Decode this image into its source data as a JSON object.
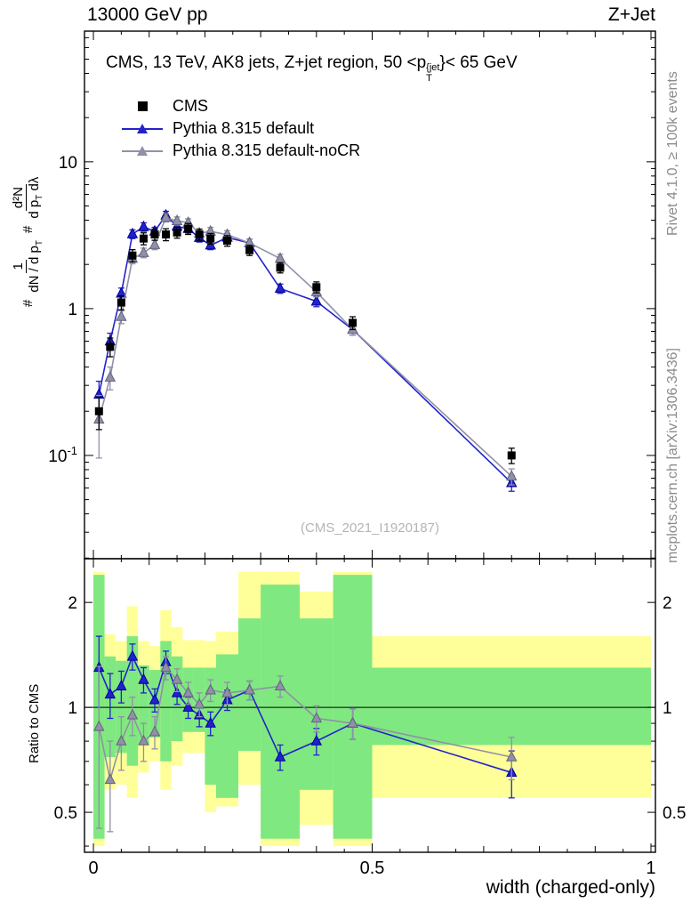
{
  "header": {
    "left": "13000 GeV pp",
    "right": "Z+Jet"
  },
  "panel_title": {
    "pre": "CMS, 13 TeV, AK8 jets, Z+jet region, 50 <p",
    "sup": "{jet",
    "sub": "T",
    "post": "}< 65 GeV"
  },
  "legend": [
    {
      "label": "CMS",
      "marker": "square",
      "color": "#000000"
    },
    {
      "label": "Pythia 8.315 default",
      "marker": "triangle",
      "color": "#2222cc"
    },
    {
      "label": "Pythia 8.315 default-noCR",
      "marker": "triangle",
      "color": "#9090a8"
    }
  ],
  "watermark": "(CMS_2021_I1920187)",
  "side_notes": {
    "top_right": "Rivet 4.1.0, ≥ 100k events",
    "bottom_right": "mcplots.cern.ch [arXiv:1306.3436]"
  },
  "ylabel_main": {
    "prefix": "#",
    "frac1_num": "1",
    "frac1_den_pre": "dN / d p",
    "frac1_den_sub": "T",
    "prefix2": "#",
    "frac2_num": "d²N",
    "frac2_den_pre": "d p",
    "frac2_den_sub": "T",
    "frac2_den_post": " dλ"
  },
  "ylabel_ratio": "Ratio to CMS",
  "xlabel": "width (charged-only)",
  "chart_data": {
    "type": "line",
    "title": "CMS, 13 TeV, AK8 jets, Z+jet region, 50 <p^{jet}_T< 65 GeV",
    "xlabel": "width (charged-only)",
    "ylabel": "# 1/(dN/dp_T) d²N/(dp_T dλ)",
    "ratio_ylabel": "Ratio to CMS",
    "legend_position": "top-left",
    "grid": false,
    "x_range": [
      -0.016,
      1.008
    ],
    "x_ticks": [
      {
        "v": 0,
        "label": "0"
      },
      {
        "v": 0.5,
        "label": "0.5"
      },
      {
        "v": 1,
        "label": "1"
      }
    ],
    "main": {
      "y_scale": "log",
      "y_range": [
        0.0198,
        77.6
      ],
      "y_ticks": [
        {
          "v": 10,
          "label": "10"
        },
        {
          "v": 1,
          "label": "1"
        },
        {
          "v": 0.1,
          "label": "10",
          "sup": "-1"
        }
      ]
    },
    "ratio": {
      "y_scale": "log",
      "y_range": [
        0.384,
        2.67
      ],
      "y_ticks": [
        {
          "v": 2,
          "label": "2"
        },
        {
          "v": 1,
          "label": "1"
        },
        {
          "v": 0.5,
          "label": "0.5"
        }
      ],
      "minor_ticks": [
        0.4,
        0.6,
        0.7,
        0.8,
        0.9
      ]
    },
    "x": [
      0.01,
      0.03,
      0.05,
      0.07,
      0.09,
      0.11,
      0.13,
      0.15,
      0.17,
      0.19,
      0.21,
      0.24,
      0.28,
      0.335,
      0.4,
      0.465,
      0.75
    ],
    "series": [
      {
        "name": "CMS",
        "marker": "square",
        "color": "#000000",
        "y": [
          0.2,
          0.55,
          1.1,
          2.3,
          3.0,
          3.2,
          3.2,
          3.3,
          3.5,
          3.2,
          3.0,
          2.9,
          2.5,
          1.9,
          1.4,
          0.8,
          0.1
        ],
        "err": [
          0.05,
          0.08,
          0.12,
          0.22,
          0.28,
          0.28,
          0.3,
          0.28,
          0.3,
          0.28,
          0.25,
          0.24,
          0.2,
          0.15,
          0.12,
          0.08,
          0.012
        ]
      },
      {
        "name": "Pythia 8.315 default",
        "marker": "triangle",
        "color": "#2222cc",
        "edge": "#000099",
        "y": [
          0.26,
          0.6,
          1.27,
          3.22,
          3.6,
          3.36,
          4.32,
          3.63,
          3.5,
          3.04,
          2.7,
          3.05,
          2.8,
          1.37,
          1.12,
          0.72,
          0.065
        ],
        "err": [
          0.06,
          0.08,
          0.11,
          0.22,
          0.24,
          0.22,
          0.28,
          0.24,
          0.23,
          0.2,
          0.18,
          0.2,
          0.18,
          0.1,
          0.09,
          0.06,
          0.008
        ],
        "ratio": [
          1.3,
          1.09,
          1.15,
          1.4,
          1.2,
          1.05,
          1.35,
          1.1,
          1.0,
          0.95,
          0.9,
          1.05,
          1.12,
          0.72,
          0.8,
          0.9,
          0.65
        ],
        "ratio_err": [
          0.3,
          0.16,
          0.12,
          0.12,
          0.1,
          0.08,
          0.1,
          0.08,
          0.07,
          0.07,
          0.07,
          0.07,
          0.07,
          0.06,
          0.07,
          0.09,
          0.1
        ]
      },
      {
        "name": "Pythia 8.315 default-noCR",
        "marker": "triangle",
        "color": "#9090a8",
        "edge": "#62627a",
        "y": [
          0.176,
          0.34,
          0.88,
          2.19,
          2.4,
          2.72,
          4.16,
          3.96,
          3.85,
          3.26,
          3.36,
          3.19,
          2.8,
          2.19,
          1.3,
          0.72,
          0.072
        ],
        "err": [
          0.08,
          0.06,
          0.09,
          0.17,
          0.18,
          0.2,
          0.27,
          0.25,
          0.24,
          0.21,
          0.21,
          0.2,
          0.18,
          0.15,
          0.1,
          0.06,
          0.009
        ],
        "ratio": [
          0.88,
          0.62,
          0.8,
          0.95,
          0.8,
          0.85,
          1.3,
          1.2,
          1.1,
          1.02,
          1.12,
          1.1,
          1.12,
          1.15,
          0.93,
          0.9,
          0.72
        ],
        "ratio_err": [
          0.43,
          0.18,
          0.14,
          0.12,
          0.1,
          0.09,
          0.1,
          0.09,
          0.08,
          0.08,
          0.08,
          0.08,
          0.07,
          0.08,
          0.08,
          0.09,
          0.1
        ]
      }
    ],
    "bands": {
      "yellow_color": "#ffff99",
      "green_color": "#80e880",
      "edges": [
        0.0,
        0.02,
        0.04,
        0.06,
        0.08,
        0.1,
        0.12,
        0.14,
        0.16,
        0.18,
        0.2,
        0.22,
        0.26,
        0.3,
        0.37,
        0.43,
        0.5,
        1.0
      ],
      "yellow": [
        [
          0.4,
          2.45
        ],
        [
          0.58,
          1.62
        ],
        [
          0.6,
          1.55
        ],
        [
          0.55,
          1.95
        ],
        [
          0.65,
          1.55
        ],
        [
          0.7,
          1.5
        ],
        [
          0.58,
          1.9
        ],
        [
          0.68,
          1.7
        ],
        [
          0.74,
          1.56
        ],
        [
          0.74,
          1.56
        ],
        [
          0.5,
          1.55
        ],
        [
          0.52,
          1.65
        ],
        [
          0.6,
          2.45
        ],
        [
          0.4,
          2.45
        ],
        [
          0.46,
          2.15
        ],
        [
          0.4,
          2.45
        ],
        [
          0.55,
          1.6
        ]
      ],
      "green": [
        [
          0.42,
          2.4
        ],
        [
          0.72,
          1.4
        ],
        [
          0.74,
          1.36
        ],
        [
          0.68,
          1.6
        ],
        [
          0.78,
          1.32
        ],
        [
          0.82,
          1.28
        ],
        [
          0.7,
          1.55
        ],
        [
          0.8,
          1.4
        ],
        [
          0.85,
          1.3
        ],
        [
          0.85,
          1.3
        ],
        [
          0.6,
          1.3
        ],
        [
          0.55,
          1.42
        ],
        [
          0.75,
          1.8
        ],
        [
          0.42,
          2.25
        ],
        [
          0.58,
          1.8
        ],
        [
          0.42,
          2.4
        ],
        [
          0.78,
          1.3
        ]
      ]
    }
  }
}
